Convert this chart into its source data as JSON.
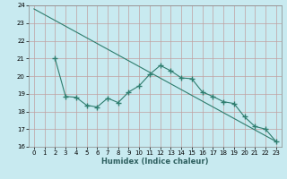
{
  "xlabel": "Humidex (Indice chaleur)",
  "background_color": "#c8eaf0",
  "grid_color": "#c0a0a0",
  "line_color": "#2e7d6e",
  "xlim": [
    -0.5,
    23.5
  ],
  "ylim": [
    16,
    24
  ],
  "yticks": [
    16,
    17,
    18,
    19,
    20,
    21,
    22,
    23,
    24
  ],
  "xticks": [
    0,
    1,
    2,
    3,
    4,
    5,
    6,
    7,
    8,
    9,
    10,
    11,
    12,
    13,
    14,
    15,
    16,
    17,
    18,
    19,
    20,
    21,
    22,
    23
  ],
  "line1_x": [
    0,
    23
  ],
  "line1_y": [
    23.8,
    16.3
  ],
  "line2_x": [
    2,
    3,
    4,
    5,
    6,
    7,
    8,
    9,
    10,
    11,
    12,
    13,
    14,
    15,
    16,
    17,
    18,
    19,
    20,
    21,
    22,
    23
  ],
  "line2_y": [
    21.0,
    18.85,
    18.8,
    18.35,
    18.25,
    18.75,
    18.5,
    19.1,
    19.45,
    20.1,
    20.6,
    20.3,
    19.9,
    19.85,
    19.1,
    18.85,
    18.55,
    18.45,
    17.7,
    17.15,
    17.0,
    16.3
  ]
}
